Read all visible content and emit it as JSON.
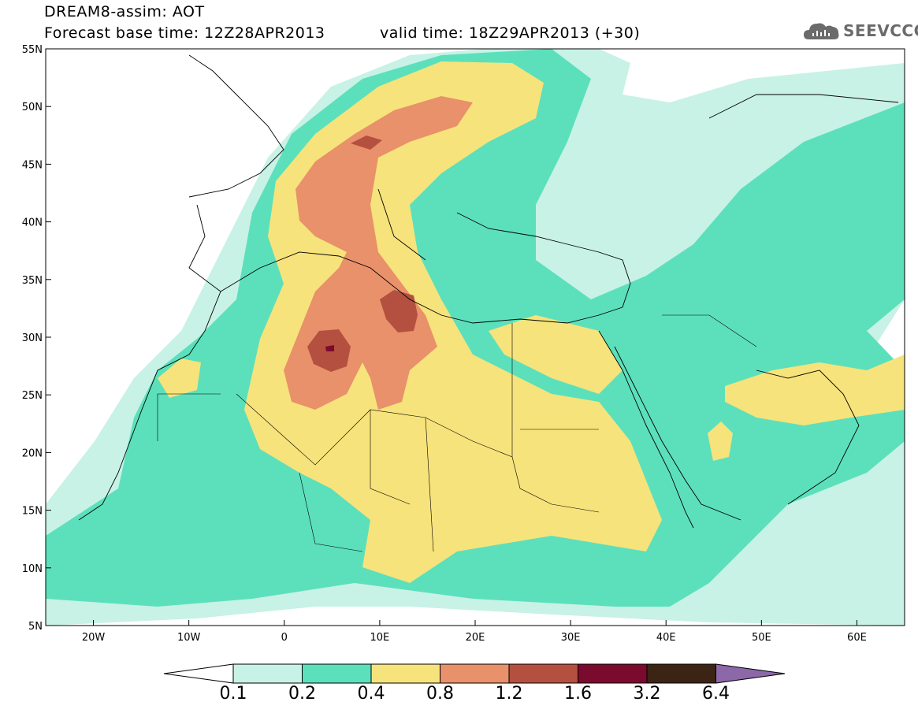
{
  "header": {
    "title": "DREAM8-assim: AOT",
    "base_time": "Forecast base time: 12Z28APR2013",
    "valid_time": "valid time: 18Z29APR2013 (+30)"
  },
  "logo": {
    "text": "SEEVCCC"
  },
  "map": {
    "lat_labels": [
      "55N",
      "50N",
      "45N",
      "40N",
      "35N",
      "30N",
      "25N",
      "20N",
      "15N",
      "10N",
      "5N"
    ],
    "lon_labels": [
      "20W",
      "10W",
      "0",
      "10E",
      "20E",
      "30E",
      "40E",
      "50E",
      "60E"
    ],
    "lat_range": [
      5,
      55
    ],
    "lon_range": [
      -25,
      65
    ]
  },
  "colorbar": {
    "levels": [
      "0.1",
      "0.2",
      "0.4",
      "0.8",
      "1.2",
      "1.6",
      "3.2",
      "6.4"
    ],
    "colors": [
      "#ffffff",
      "#c8f2e6",
      "#5ce0bc",
      "#f7e37b",
      "#e8916a",
      "#b4503f",
      "#7a0a2e",
      "#3c2414",
      "#8c68a8"
    ]
  }
}
